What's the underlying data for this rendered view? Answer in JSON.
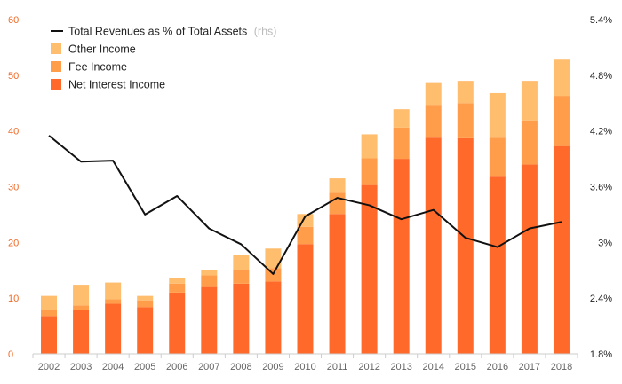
{
  "chart_data": {
    "type": "bar",
    "title": "",
    "xlabel": "",
    "ylabel": "",
    "stacked": true,
    "categories": [
      "2002",
      "2003",
      "2004",
      "2005",
      "2006",
      "2007",
      "2008",
      "2009",
      "2010",
      "2011",
      "2012",
      "2013",
      "2014",
      "2015",
      "2016",
      "2017",
      "2018"
    ],
    "series": [
      {
        "name": "Net Interest Income",
        "type": "bar",
        "color": "#ff6a2b",
        "values": [
          6.8,
          7.8,
          9.0,
          8.4,
          11.0,
          12.0,
          12.6,
          13.0,
          19.7,
          25.1,
          30.3,
          35.0,
          38.8,
          38.7,
          31.8,
          34.0,
          37.3
        ]
      },
      {
        "name": "Fee Income",
        "type": "bar",
        "color": "#ff9d4a",
        "values": [
          1.0,
          0.9,
          0.8,
          1.2,
          1.6,
          2.1,
          2.5,
          2.4,
          3.1,
          3.8,
          4.8,
          5.6,
          5.9,
          6.3,
          7.0,
          7.9,
          9.0
        ]
      },
      {
        "name": "Other Income",
        "type": "bar",
        "color": "#ffbd6e",
        "values": [
          2.6,
          3.7,
          3.0,
          0.8,
          1.0,
          1.0,
          2.6,
          3.5,
          2.3,
          2.6,
          4.3,
          3.3,
          3.9,
          4.0,
          8.0,
          7.1,
          6.5
        ]
      },
      {
        "name": "Total Revenues as % of Total Assets",
        "name_suffix": "(rhs)",
        "type": "line",
        "axis": "right",
        "color": "#111111",
        "values": [
          4.15,
          3.87,
          3.88,
          3.3,
          3.5,
          3.15,
          2.98,
          2.66,
          3.28,
          3.48,
          3.4,
          3.25,
          3.35,
          3.05,
          2.95,
          3.15,
          3.22
        ]
      }
    ],
    "left_axis": {
      "min": 0,
      "max": 60,
      "ticks": [
        0,
        10,
        20,
        30,
        40,
        50,
        60
      ],
      "color": "#f06a28"
    },
    "right_axis": {
      "min": 1.8,
      "max": 5.4,
      "ticks": [
        "1.8%",
        "2.4%",
        "3%",
        "3.6%",
        "4.2%",
        "4.8%",
        "5.4%"
      ],
      "tick_values": [
        1.8,
        2.4,
        3.0,
        3.6,
        4.2,
        4.8,
        5.4
      ]
    },
    "legend": {
      "placement": "top-left"
    },
    "grid": false
  }
}
